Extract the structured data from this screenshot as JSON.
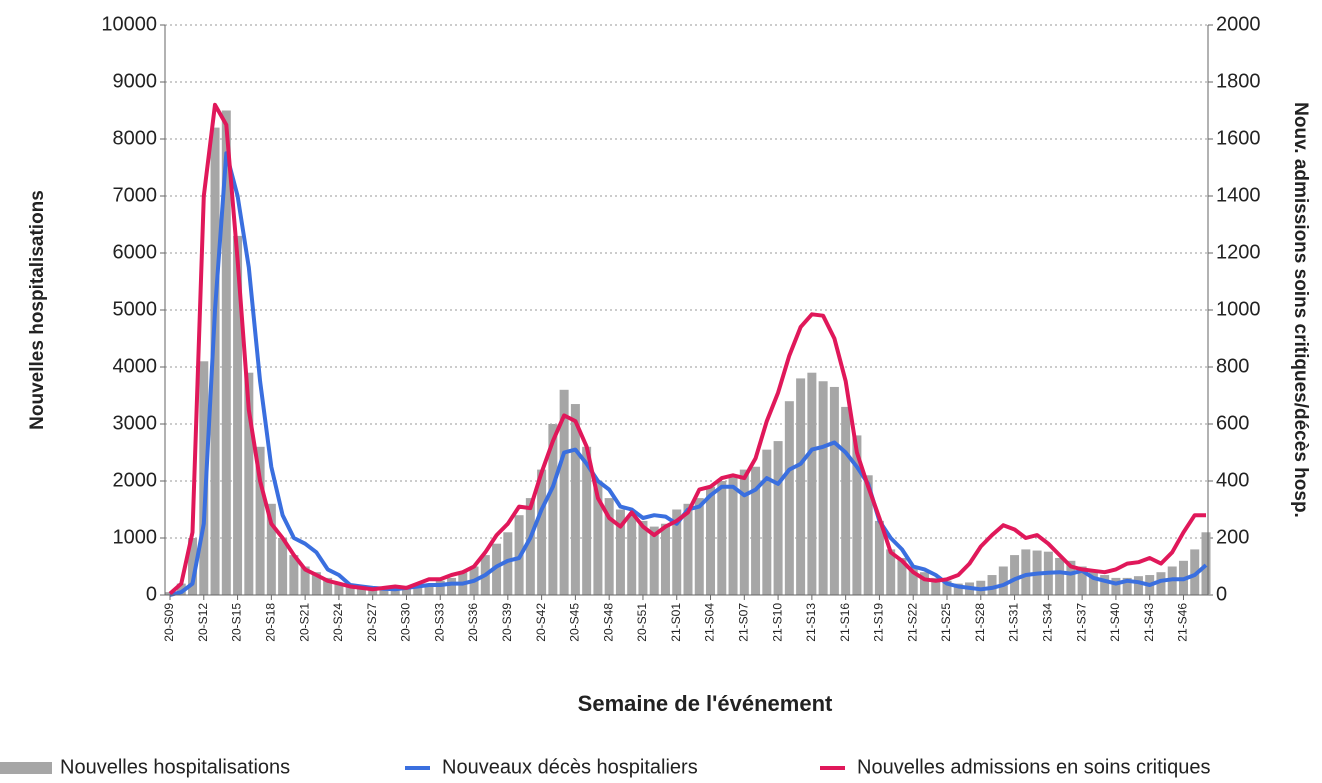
{
  "chart_data": {
    "type": "bar_line",
    "x_label": "Semaine de l'événement",
    "y_label": "Nouvelles hospitalisations",
    "y2_label": "Nouv. admissions soins critiques/décès hosp.",
    "categories": [
      "20-S09",
      null,
      null,
      "20-S12",
      null,
      null,
      "20-S15",
      null,
      null,
      "20-S18",
      null,
      null,
      "20-S21",
      null,
      null,
      "20-S24",
      null,
      null,
      "20-S27",
      null,
      null,
      "20-S30",
      null,
      null,
      "20-S33",
      null,
      null,
      "20-S36",
      null,
      null,
      "20-S39",
      null,
      null,
      "20-S42",
      null,
      null,
      "20-S45",
      null,
      null,
      "20-S48",
      null,
      null,
      "20-S51",
      null,
      null,
      "21-S01",
      null,
      null,
      "21-S04",
      null,
      null,
      "21-S07",
      null,
      null,
      "21-S10",
      null,
      null,
      "21-S13",
      null,
      null,
      "21-S16",
      null,
      null,
      "21-S19",
      null,
      null,
      "21-S22",
      null,
      null,
      "21-S25",
      null,
      null,
      "21-S28",
      null,
      null,
      "21-S31",
      null,
      null,
      "21-S34",
      null,
      null,
      "21-S37",
      null,
      null,
      "21-S40",
      null,
      null,
      "21-S43",
      null,
      null,
      "21-S46",
      null,
      null
    ],
    "series": [
      {
        "name": "Nouvelles hospitalisations",
        "type": "bar",
        "color": "#a6a6a6",
        "values": [
          50,
          200,
          1000,
          4100,
          8200,
          8500,
          6300,
          3900,
          2600,
          1600,
          1000,
          700,
          500,
          400,
          300,
          200,
          150,
          120,
          100,
          100,
          110,
          130,
          150,
          200,
          250,
          300,
          400,
          500,
          700,
          900,
          1100,
          1400,
          1700,
          2200,
          3000,
          3600,
          3350,
          2600,
          2000,
          1700,
          1500,
          1400,
          1300,
          1200,
          1250,
          1500,
          1600,
          1700,
          1900,
          2000,
          2100,
          2200,
          2250,
          2550,
          2700,
          3400,
          3800,
          3900,
          3750,
          3650,
          3300,
          2800,
          2100,
          1300,
          800,
          650,
          500,
          400,
          300,
          250,
          200,
          220,
          250,
          350,
          500,
          700,
          800,
          780,
          760,
          650,
          600,
          500,
          400,
          350,
          300,
          300,
          330,
          350,
          400,
          500,
          600,
          800,
          1100
        ]
      },
      {
        "name": "Nouveaux décès hospitaliers",
        "type": "line",
        "axis": "y2",
        "color": "#3a6fdf",
        "values": [
          0,
          10,
          40,
          250,
          1000,
          1550,
          1400,
          1150,
          750,
          450,
          280,
          200,
          180,
          150,
          90,
          70,
          35,
          30,
          25,
          22,
          20,
          25,
          30,
          35,
          35,
          40,
          40,
          50,
          70,
          100,
          120,
          130,
          200,
          300,
          380,
          500,
          510,
          460,
          400,
          370,
          310,
          300,
          270,
          280,
          275,
          250,
          300,
          310,
          350,
          380,
          380,
          350,
          370,
          410,
          390,
          440,
          460,
          510,
          520,
          535,
          500,
          450,
          390,
          260,
          200,
          160,
          100,
          90,
          70,
          40,
          30,
          25,
          20,
          25,
          35,
          55,
          70,
          75,
          78,
          80,
          75,
          85,
          60,
          50,
          40,
          50,
          45,
          35,
          50,
          55,
          55,
          70,
          105
        ]
      },
      {
        "name": "Nouvelles admissions en soins critiques",
        "type": "line",
        "axis": "y2",
        "color": "#e0185a",
        "values": [
          5,
          40,
          220,
          1400,
          1720,
          1650,
          1175,
          650,
          400,
          250,
          200,
          140,
          90,
          70,
          50,
          40,
          30,
          25,
          20,
          25,
          30,
          25,
          40,
          55,
          55,
          70,
          80,
          100,
          150,
          210,
          250,
          310,
          305,
          430,
          540,
          630,
          610,
          520,
          340,
          270,
          240,
          290,
          240,
          210,
          240,
          260,
          290,
          370,
          380,
          410,
          420,
          410,
          480,
          610,
          710,
          840,
          940,
          985,
          980,
          900,
          750,
          500,
          380,
          270,
          150,
          120,
          80,
          55,
          50,
          55,
          70,
          110,
          170,
          210,
          245,
          230,
          200,
          210,
          180,
          140,
          100,
          90,
          85,
          80,
          90,
          110,
          115,
          130,
          110,
          150,
          220,
          280,
          280
        ]
      }
    ],
    "ylim": [
      0,
      10000
    ],
    "yticks": [
      0,
      1000,
      2000,
      3000,
      4000,
      5000,
      6000,
      7000,
      8000,
      9000,
      10000
    ],
    "y2lim": [
      0,
      2000
    ],
    "y2ticks": [
      0,
      200,
      400,
      600,
      800,
      1000,
      1200,
      1400,
      1600,
      1800,
      2000
    ],
    "grid": true
  }
}
